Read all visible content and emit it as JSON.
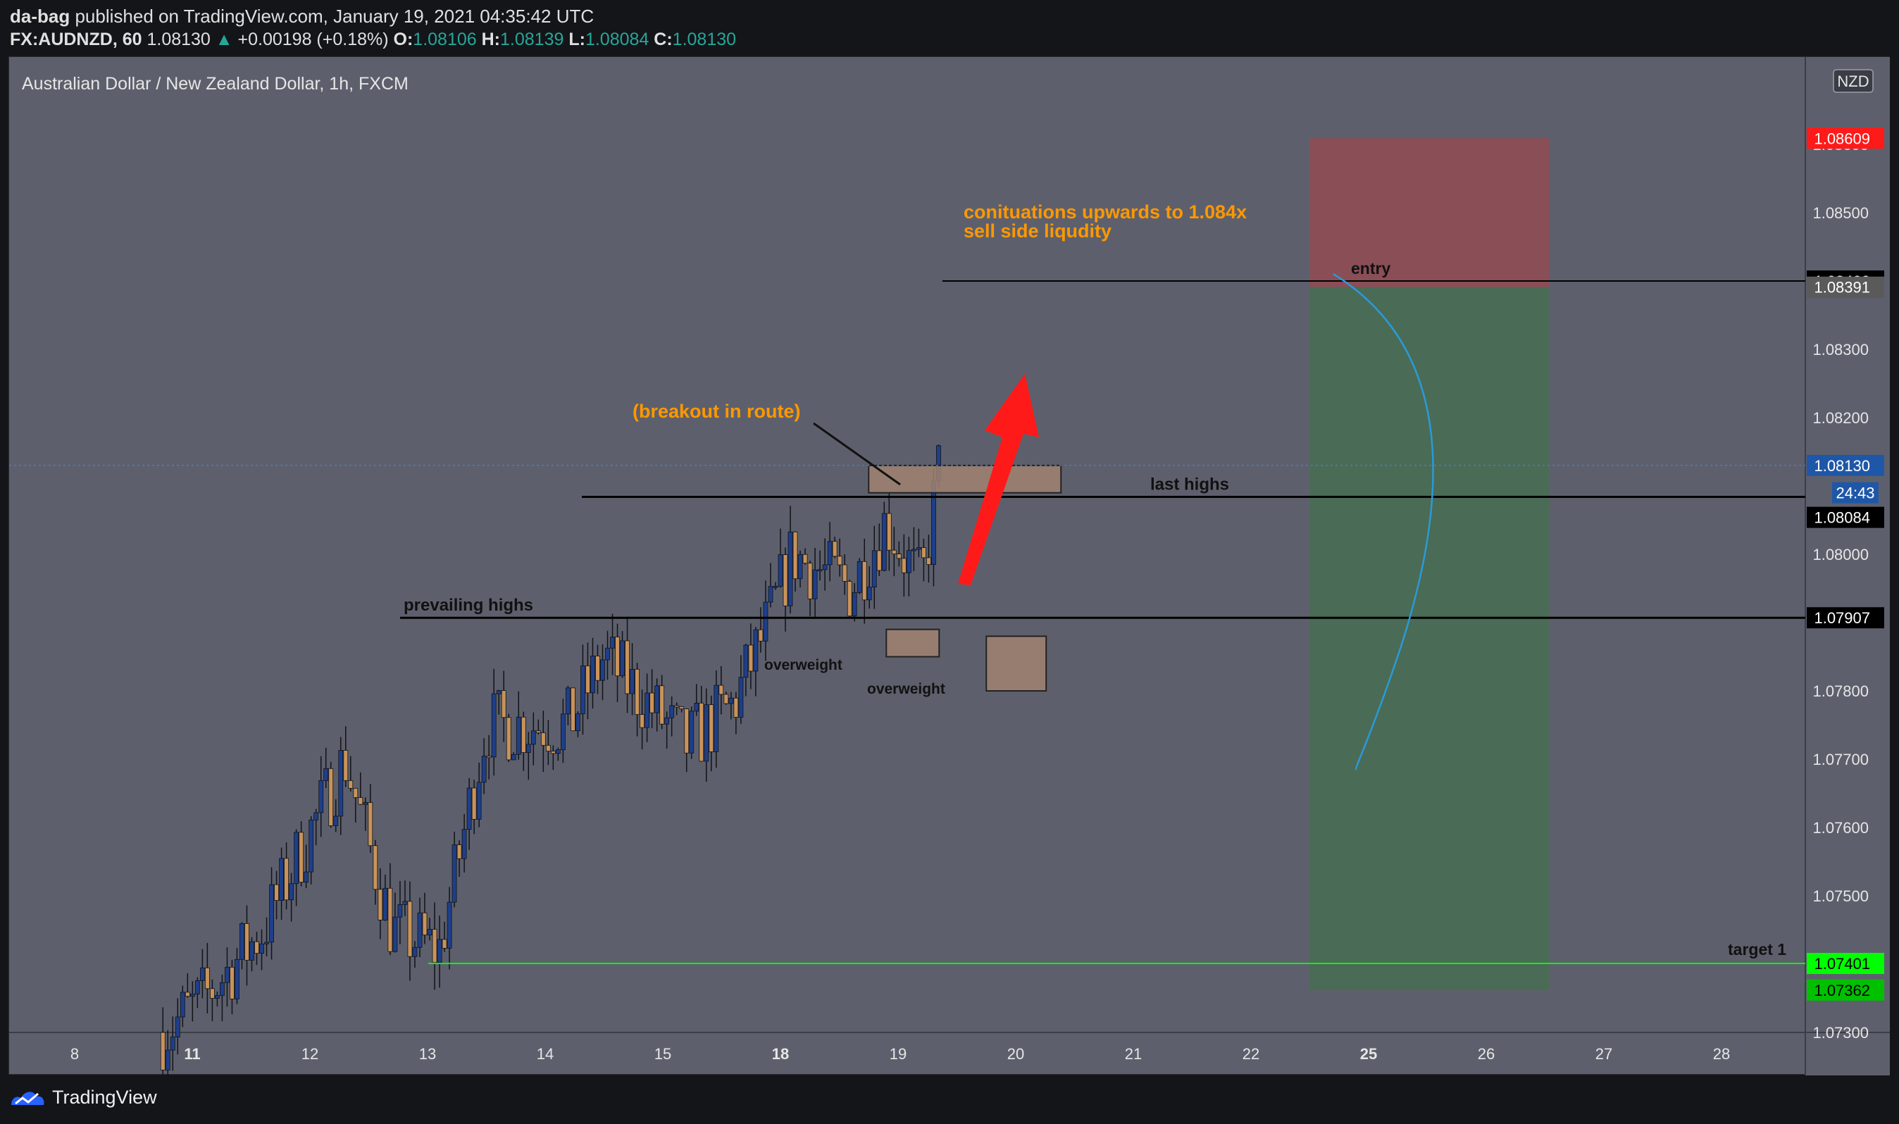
{
  "header": {
    "author": "da-bag",
    "published_text": "published on TradingView.com, January 19, 2021 04:35:42 UTC",
    "symbol": "FX:AUDNZD, 60",
    "last": "1.08130",
    "change": "+0.00198 (+0.18%)",
    "open_label": "O:",
    "open": "1.08106",
    "high_label": "H:",
    "high": "1.08139",
    "low_label": "L:",
    "low": "1.08084",
    "close_label": "C:",
    "close": "1.08130"
  },
  "footer": {
    "brand": "TradingView"
  },
  "colors": {
    "background": "#5d606c",
    "up_candle": "#1e3f8a",
    "down_candle": "#c9935a",
    "support_line": "#000000",
    "target_line": "#00ff00",
    "arrow": "#ff1a1a",
    "annotation_orange": "#ff9800",
    "curve": "#2a9ad8",
    "loss_zone": "#8a4e56",
    "profit_zone": "#4a6b55",
    "zone_box": "#a08270"
  },
  "chart_data": {
    "type": "candlestick",
    "title": "Australian Dollar / New Zealand Dollar, 1h, FXCM",
    "currency_badge": "NZD",
    "x_ticks": [
      {
        "label": "8",
        "bold": false
      },
      {
        "label": "11",
        "bold": true
      },
      {
        "label": "12",
        "bold": false
      },
      {
        "label": "13",
        "bold": false
      },
      {
        "label": "14",
        "bold": false
      },
      {
        "label": "15",
        "bold": false
      },
      {
        "label": "18",
        "bold": true
      },
      {
        "label": "19",
        "bold": false
      },
      {
        "label": "20",
        "bold": false
      },
      {
        "label": "21",
        "bold": false
      },
      {
        "label": "22",
        "bold": false
      },
      {
        "label": "25",
        "bold": true
      },
      {
        "label": "26",
        "bold": false
      },
      {
        "label": "27",
        "bold": false
      },
      {
        "label": "28",
        "bold": false
      }
    ],
    "y_ticks": [
      "1.08600",
      "1.08500",
      "1.08300",
      "1.08200",
      "1.08000",
      "1.07800",
      "1.07700",
      "1.07600",
      "1.07500",
      "1.07300"
    ],
    "y_range": [
      1.073,
      1.0869
    ],
    "price_tags": [
      {
        "label": "1.08609",
        "value": 1.08609,
        "bg": "#ff1a1a",
        "fg": "#ffffff"
      },
      {
        "label": "1.08400",
        "value": 1.084,
        "bg": "#000000",
        "fg": "#ffffff"
      },
      {
        "label": "1.08391",
        "value": 1.08391,
        "bg": "#5a5a5a",
        "fg": "#ffffff"
      },
      {
        "label": "1.08130",
        "value": 1.0813,
        "bg": "#1f57a8",
        "fg": "#ffffff"
      },
      {
        "label": "24:43",
        "value": 1.0809,
        "bg": "#1f57a8",
        "fg": "#ffffff"
      },
      {
        "label": "1.08084",
        "value": 1.08054,
        "bg": "#000000",
        "fg": "#ffffff"
      },
      {
        "label": "1.07907",
        "value": 1.07907,
        "bg": "#000000",
        "fg": "#ffffff"
      },
      {
        "label": "1.07401",
        "value": 1.07401,
        "bg": "#00ff00",
        "fg": "#000000"
      },
      {
        "label": "1.07362",
        "value": 1.07362,
        "bg": "#00c000",
        "fg": "#000000"
      }
    ],
    "last_price": 1.0813,
    "levels": [
      {
        "label": "last highs",
        "value": 1.08084
      },
      {
        "label": "prevailing highs",
        "value": 1.07907
      },
      {
        "label": "entry",
        "value": 1.084
      },
      {
        "label": "target 1",
        "value": 1.07401
      }
    ],
    "annotations": {
      "breakout": "(breakout in route)",
      "continuation_1": "conituations upwards to 1.084x",
      "continuation_2": "sell side liqudity",
      "overweight_1": "overweight",
      "overweight_2": "overweight"
    },
    "position": {
      "stop": 1.08609,
      "entry": 1.08391,
      "target": 1.07362
    },
    "candles_summary": {
      "start": 1.0732,
      "end": 1.0813,
      "low": 1.0731,
      "high": 1.08139
    }
  }
}
